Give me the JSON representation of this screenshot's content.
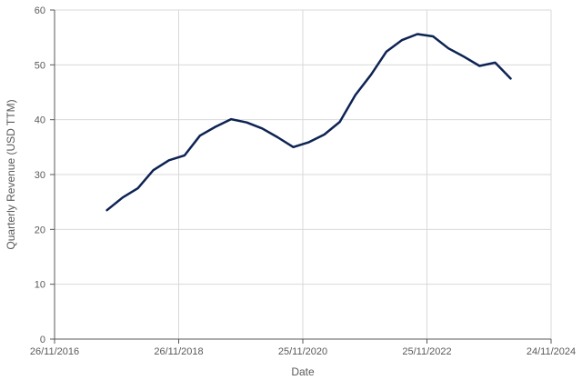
{
  "chart_data": {
    "type": "line",
    "title": "",
    "xlabel": "Date",
    "ylabel": "Quarterly Revenue (USD TTM)",
    "x_axis_type": "date",
    "xlim": [
      "2016-11-26",
      "2024-11-24"
    ],
    "ylim": [
      0,
      60
    ],
    "x_ticks": [
      "2016-11-26",
      "2018-11-26",
      "2020-11-25",
      "2022-11-25",
      "2024-11-24"
    ],
    "x_tick_labels": [
      "26/11/2016",
      "26/11/2018",
      "25/11/2020",
      "25/11/2022",
      "24/11/2024"
    ],
    "y_ticks": [
      0,
      10,
      20,
      30,
      40,
      50,
      60
    ],
    "y_tick_labels": [
      "0",
      "10",
      "20",
      "30",
      "40",
      "50",
      "60"
    ],
    "grid": true,
    "legend": "none",
    "series": [
      {
        "color": "#0d2353",
        "points": [
          {
            "x": "2017-09-30",
            "y": 23.5
          },
          {
            "x": "2017-12-31",
            "y": 25.8
          },
          {
            "x": "2018-03-31",
            "y": 27.5
          },
          {
            "x": "2018-06-30",
            "y": 30.8
          },
          {
            "x": "2018-09-30",
            "y": 32.6
          },
          {
            "x": "2018-12-31",
            "y": 33.5
          },
          {
            "x": "2019-03-31",
            "y": 37.1
          },
          {
            "x": "2019-06-30",
            "y": 38.7
          },
          {
            "x": "2019-09-30",
            "y": 40.1
          },
          {
            "x": "2019-12-31",
            "y": 39.5
          },
          {
            "x": "2020-03-31",
            "y": 38.4
          },
          {
            "x": "2020-06-30",
            "y": 36.8
          },
          {
            "x": "2020-09-30",
            "y": 35.0
          },
          {
            "x": "2020-12-31",
            "y": 35.9
          },
          {
            "x": "2021-03-31",
            "y": 37.3
          },
          {
            "x": "2021-06-30",
            "y": 39.6
          },
          {
            "x": "2021-09-30",
            "y": 44.5
          },
          {
            "x": "2021-12-31",
            "y": 48.2
          },
          {
            "x": "2022-03-31",
            "y": 52.4
          },
          {
            "x": "2022-06-30",
            "y": 54.5
          },
          {
            "x": "2022-09-30",
            "y": 55.6
          },
          {
            "x": "2022-12-31",
            "y": 55.2
          },
          {
            "x": "2023-03-31",
            "y": 53.0
          },
          {
            "x": "2023-06-30",
            "y": 51.5
          },
          {
            "x": "2023-09-30",
            "y": 49.8
          },
          {
            "x": "2023-12-31",
            "y": 50.4
          },
          {
            "x": "2024-03-31",
            "y": 47.5
          }
        ]
      }
    ]
  }
}
